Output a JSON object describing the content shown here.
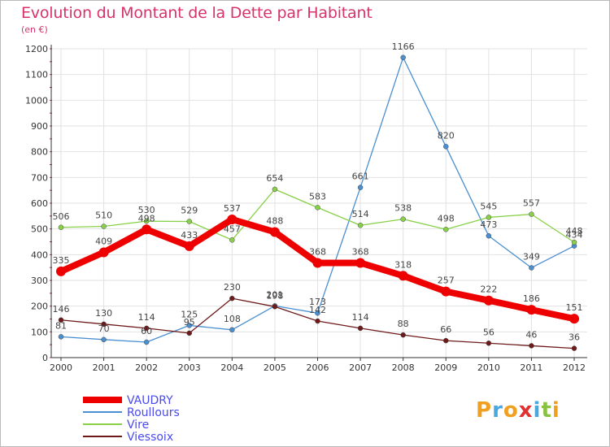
{
  "chart_data": {
    "type": "line",
    "title": "Evolution du Montant de la Dette par Habitant",
    "subtitle": "(en €)",
    "x": [
      "2000",
      "2001",
      "2002",
      "2003",
      "2004",
      "2005",
      "2006",
      "2007",
      "2008",
      "2009",
      "2010",
      "2011",
      "2012"
    ],
    "ylim": [
      0,
      1200
    ],
    "yticks": [
      0,
      100,
      200,
      300,
      400,
      500,
      600,
      700,
      800,
      900,
      1000,
      1100,
      1200
    ],
    "grid": true,
    "legend_position": "bottom-left",
    "series": [
      {
        "name": "VAUDRY",
        "color": "#ee0000",
        "values": [
          335,
          409,
          498,
          433,
          537,
          488,
          368,
          368,
          318,
          257,
          222,
          186,
          151
        ]
      },
      {
        "name": "Roullours",
        "color": "#4a8fd0",
        "values": [
          81,
          70,
          60,
          125,
          108,
          201,
          173,
          661,
          1166,
          820,
          473,
          349,
          434
        ]
      },
      {
        "name": "Vire",
        "color": "#88d048",
        "values": [
          506,
          510,
          530,
          529,
          457,
          654,
          583,
          514,
          538,
          498,
          545,
          557,
          448
        ]
      },
      {
        "name": "Viessoix",
        "color": "#6e1a1a",
        "values": [
          146,
          130,
          114,
          95,
          230,
          198,
          142,
          114,
          88,
          66,
          56,
          46,
          36
        ]
      }
    ],
    "labels": {
      "VAUDRY": [
        "335",
        "409",
        "498",
        "433",
        "537",
        "488",
        "368",
        "368",
        "318",
        "257",
        "222",
        "186",
        "151"
      ],
      "Roullours": [
        "81",
        "70",
        "60",
        "125",
        "108",
        "201",
        "173",
        "661",
        "1166",
        "820",
        "473",
        "349",
        "434"
      ],
      "Vire": [
        "506",
        "510",
        "530",
        "529",
        "457",
        "654",
        "583",
        "514",
        "538",
        "498",
        "545",
        "557",
        "448"
      ],
      "Viessoix": [
        "146",
        "130",
        "114",
        "95",
        "230",
        "198",
        "142",
        "114",
        "88",
        "66",
        "56",
        "46",
        "36"
      ]
    }
  },
  "logo": {
    "text": "Proxiti"
  }
}
